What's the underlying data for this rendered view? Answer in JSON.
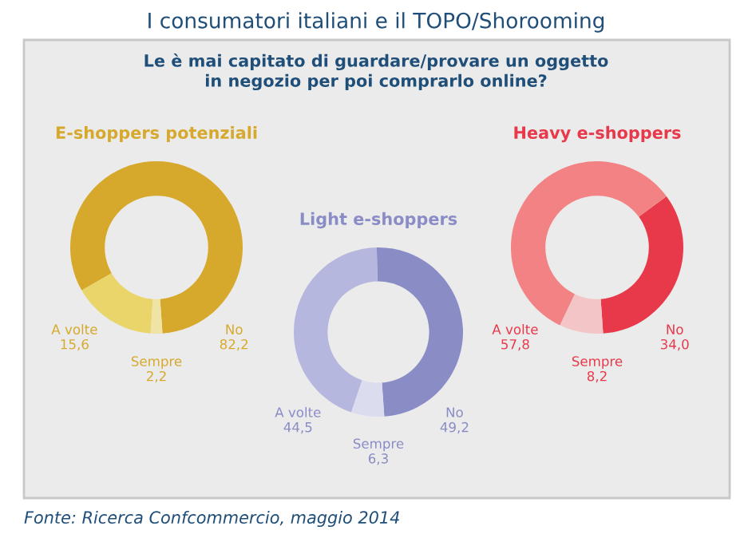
{
  "chart_data": [
    {
      "type": "donut",
      "title": "E-shoppers potenziali",
      "annotations": [
        "I consumatori italiani e il TOPO/Shorooming",
        "Le è mai capitato di guardare/provare un oggetto\nin negozio per poi comprarlo online?",
        "Fonte: Ricerca Confcommercio, maggio 2014"
      ],
      "categories": [
        "No",
        "A volte",
        "Sempre"
      ],
      "values": [
        82.2,
        15.6,
        2.2
      ],
      "value_labels": [
        "82,2",
        "15,6",
        "2,2"
      ],
      "colors": [
        "#d6a92c",
        "#e9d56a",
        "#efe4a6"
      ]
    },
    {
      "type": "donut",
      "title": "Light e-shoppers",
      "categories": [
        "No",
        "A volte",
        "Sempre"
      ],
      "values": [
        49.2,
        44.5,
        6.3
      ],
      "value_labels": [
        "49,2",
        "44,5",
        "6,3"
      ],
      "colors": [
        "#8a8cc6",
        "#b6b7de",
        "#dcdcef"
      ]
    },
    {
      "type": "donut",
      "title": "Heavy e-shoppers",
      "categories": [
        "No",
        "A volte",
        "Sempre"
      ],
      "values": [
        34.0,
        57.8,
        8.2
      ],
      "value_labels": [
        "34,0",
        "57,8",
        "8,2"
      ],
      "colors": [
        "#e8394b",
        "#f28283",
        "#f3c5c6"
      ]
    }
  ]
}
